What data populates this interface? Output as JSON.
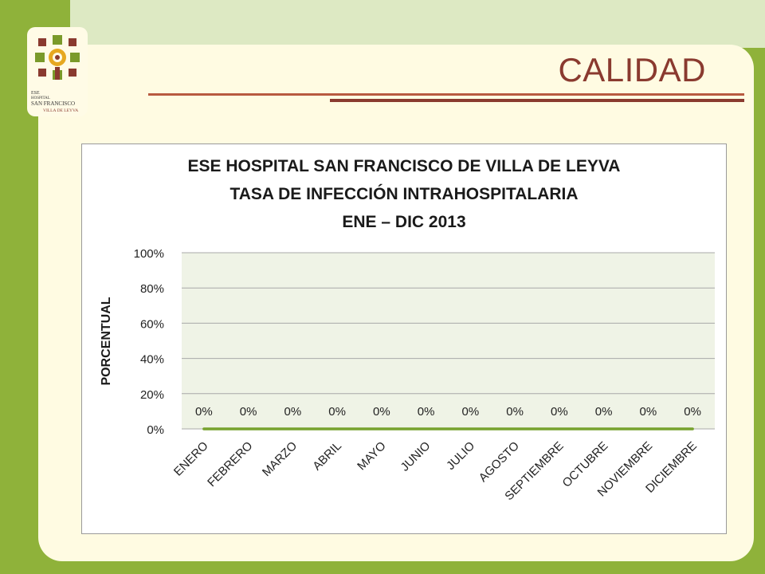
{
  "slide": {
    "title": "CALIDAD",
    "logo": {
      "line1": "ESE",
      "line2": "HOSPITAL",
      "line3": "SAN FRANCISCO",
      "line4": "VILLA DE LEYVA"
    }
  },
  "colors": {
    "background_green": "#8fb23a",
    "slide_bg": "#fffbe2",
    "title_color": "#8a3a2f",
    "plot_bg": "#eff3e6",
    "series_line": "#77a22e"
  },
  "chart_data": {
    "type": "line",
    "title_lines": [
      "ESE HOSPITAL SAN FRANCISCO DE VILLA DE LEYVA",
      "TASA DE INFECCIÓN INTRAHOSPITALARIA",
      "ENE – DIC 2013"
    ],
    "ylabel": "PORCENTUAL",
    "xlabel": "",
    "categories": [
      "ENERO",
      "FEBRERO",
      "MARZO",
      "ABRIL",
      "MAYO",
      "JUNIO",
      "JULIO",
      "AGOSTO",
      "SEPTIEMBRE",
      "OCTUBRE",
      "NOVIEMBRE",
      "DICIEMBRE"
    ],
    "series": [
      {
        "values": [
          0,
          0,
          0,
          0,
          0,
          0,
          0,
          0,
          0,
          0,
          0,
          0
        ],
        "data_labels": [
          "0%",
          "0%",
          "0%",
          "0%",
          "0%",
          "0%",
          "0%",
          "0%",
          "0%",
          "0%",
          "0%",
          "0%"
        ]
      }
    ],
    "ylim": [
      0,
      1
    ],
    "yticks": [
      0,
      0.2,
      0.4,
      0.6,
      0.8,
      1.0
    ],
    "ytick_labels": [
      "0%",
      "20%",
      "40%",
      "60%",
      "80%",
      "100%"
    ],
    "grid": true,
    "legend": "none"
  }
}
